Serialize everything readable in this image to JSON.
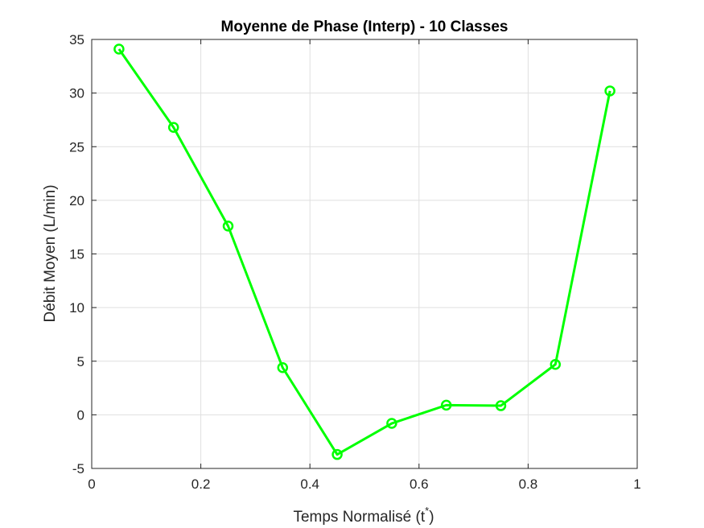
{
  "chart_data": {
    "type": "line",
    "title": "Moyenne de Phase (Interp) - 10 Classes",
    "xlabel": "Temps Normalisé (t",
    "xlabel_sup": "*",
    "xlabel_close": ")",
    "ylabel": "Débit Moyen (L/min)",
    "xlim": [
      0,
      1
    ],
    "ylim": [
      -5,
      35
    ],
    "xticks": [
      0,
      0.2,
      0.4,
      0.6,
      0.8,
      1
    ],
    "xtick_labels": [
      "0",
      "0.2",
      "0.4",
      "0.6",
      "0.8",
      "1"
    ],
    "yticks": [
      -5,
      0,
      5,
      10,
      15,
      20,
      25,
      30,
      35
    ],
    "ytick_labels": [
      "-5",
      "0",
      "5",
      "10",
      "15",
      "20",
      "25",
      "30",
      "35"
    ],
    "grid": true,
    "series": [
      {
        "color": "#00ff00",
        "marker": "circle",
        "x": [
          0.05,
          0.15,
          0.25,
          0.35,
          0.45,
          0.55,
          0.65,
          0.75,
          0.85,
          0.95
        ],
        "y": [
          34.1,
          26.8,
          17.6,
          4.4,
          -3.7,
          -0.8,
          0.9,
          0.85,
          4.7,
          30.2
        ]
      }
    ]
  }
}
